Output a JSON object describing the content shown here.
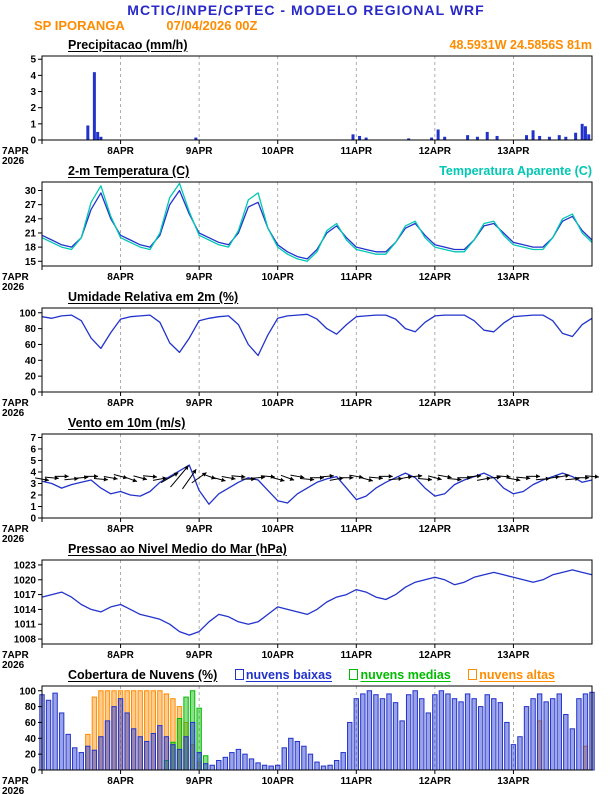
{
  "header": {
    "title": "MCTIC/INPE/CPTEC - MODELO REGIONAL WRF",
    "station": "SP IPORANGA",
    "run": "07/04/2026 00Z",
    "location": "48.5931W 24.5856S 81m"
  },
  "colors": {
    "title_blue": "#2929c8",
    "orange": "#ff8c00",
    "line_blue": "#2233cc",
    "cyan": "#00c8b4",
    "green": "#00bb00"
  },
  "time_axis": {
    "hours_total": 168,
    "ticks": [
      {
        "h": 0,
        "label": "7APR",
        "sub": "2026"
      },
      {
        "h": 24,
        "label": "8APR"
      },
      {
        "h": 48,
        "label": "9APR"
      },
      {
        "h": 72,
        "label": "10APR"
      },
      {
        "h": 96,
        "label": "11APR"
      },
      {
        "h": 120,
        "label": "12APR"
      },
      {
        "h": 144,
        "label": "13APR"
      }
    ]
  },
  "chart_data": [
    {
      "id": "precip",
      "type": "bar",
      "render": "sparse-bars",
      "title": "Precipitacao (mm/h)",
      "ylim": [
        0,
        5.2
      ],
      "yticks": [
        0,
        1,
        2,
        3,
        4,
        5
      ],
      "color": "#2233cc",
      "bars": [
        {
          "h": 14,
          "v": 0.9
        },
        {
          "h": 16,
          "v": 4.2
        },
        {
          "h": 17,
          "v": 0.5
        },
        {
          "h": 18,
          "v": 0.2
        },
        {
          "h": 47,
          "v": 0.15
        },
        {
          "h": 95,
          "v": 0.35
        },
        {
          "h": 97,
          "v": 0.25
        },
        {
          "h": 99,
          "v": 0.15
        },
        {
          "h": 112,
          "v": 0.1
        },
        {
          "h": 119,
          "v": 0.15
        },
        {
          "h": 121,
          "v": 0.65
        },
        {
          "h": 123,
          "v": 0.2
        },
        {
          "h": 130,
          "v": 0.3
        },
        {
          "h": 133,
          "v": 0.2
        },
        {
          "h": 136,
          "v": 0.5
        },
        {
          "h": 139,
          "v": 0.25
        },
        {
          "h": 148,
          "v": 0.3
        },
        {
          "h": 150,
          "v": 0.6
        },
        {
          "h": 152,
          "v": 0.25
        },
        {
          "h": 155,
          "v": 0.2
        },
        {
          "h": 158,
          "v": 0.3
        },
        {
          "h": 160,
          "v": 0.2
        },
        {
          "h": 163,
          "v": 0.45
        },
        {
          "h": 165,
          "v": 1.0
        },
        {
          "h": 166,
          "v": 0.85
        },
        {
          "h": 167,
          "v": 0.35
        }
      ]
    },
    {
      "id": "temp",
      "type": "line",
      "render": "lines",
      "title": "2-m Temperatura (C)",
      "right_label": "Temperatura Aparente (C)",
      "step_hours": 3,
      "ylim": [
        14,
        31.8
      ],
      "yticks": [
        15,
        18,
        21,
        24,
        27,
        30
      ],
      "series": [
        {
          "name": "2-m Temperatura (C)",
          "color": "#2233cc",
          "values": [
            20.5,
            19.5,
            18.5,
            18,
            20,
            26,
            29.5,
            24,
            20.5,
            19.5,
            18.5,
            18,
            20.5,
            27,
            30,
            25,
            21,
            20,
            19,
            18.5,
            21,
            26.5,
            27.5,
            22,
            18.5,
            17,
            16,
            15.5,
            17.5,
            21,
            22.5,
            20,
            18,
            17.5,
            17,
            17,
            19,
            22,
            23,
            20.5,
            18.5,
            18,
            17.5,
            17.5,
            19.5,
            22.5,
            23,
            21,
            19,
            18.5,
            18,
            18,
            20,
            23.5,
            24.5,
            21.5,
            19.5
          ]
        },
        {
          "name": "Temperatura Aparente (C)",
          "color": "#00c8b4",
          "values": [
            20,
            19,
            18,
            17.5,
            20,
            27.5,
            31,
            24.5,
            20,
            19,
            18,
            17.5,
            21,
            28.5,
            31.5,
            25.5,
            20.5,
            19.5,
            18.5,
            18,
            21.5,
            28,
            29.5,
            22,
            18,
            16.5,
            15.5,
            15,
            17,
            21.5,
            23,
            19.5,
            17.5,
            17,
            16.5,
            16.5,
            19,
            22.5,
            23.5,
            20,
            18,
            17.5,
            17,
            17,
            19.5,
            23,
            23.5,
            20.5,
            18.5,
            18,
            17.5,
            17.5,
            20,
            24,
            25,
            21,
            19
          ]
        }
      ]
    },
    {
      "id": "rh",
      "type": "line",
      "render": "lines",
      "title": "Umidade Relativa em 2m (%)",
      "step_hours": 3,
      "ylim": [
        0,
        106
      ],
      "yticks": [
        0,
        20,
        40,
        60,
        80,
        100
      ],
      "series": [
        {
          "name": "Umidade Relativa 2m",
          "color": "#2233cc",
          "values": [
            95,
            93,
            96,
            97,
            90,
            68,
            55,
            75,
            92,
            95,
            96,
            97,
            88,
            62,
            50,
            68,
            90,
            93,
            95,
            96,
            85,
            60,
            46,
            72,
            93,
            96,
            97,
            98,
            92,
            80,
            73,
            85,
            95,
            96,
            97,
            97,
            92,
            80,
            76,
            88,
            96,
            97,
            97,
            97,
            90,
            78,
            76,
            87,
            95,
            96,
            97,
            97,
            90,
            74,
            70,
            85,
            93
          ]
        }
      ]
    },
    {
      "id": "wind",
      "type": "line",
      "render": "lines",
      "title": "Vento em 10m (m/s)",
      "step_hours": 3,
      "ylim": [
        0,
        7.3
      ],
      "yticks": [
        0,
        1,
        2,
        3,
        4,
        5,
        6,
        7
      ],
      "series": [
        {
          "name": "Vento 10m",
          "color": "#2233cc",
          "values": [
            3.2,
            3.0,
            2.6,
            2.9,
            3.1,
            3.3,
            2.6,
            2.1,
            2.3,
            2.0,
            1.9,
            2.3,
            3.1,
            3.6,
            4.1,
            4.6,
            2.4,
            1.2,
            2.1,
            2.6,
            3.1,
            3.5,
            3.3,
            2.4,
            1.5,
            1.3,
            2.1,
            2.6,
            3.1,
            3.4,
            3.6,
            2.6,
            1.6,
            1.9,
            2.6,
            3.1,
            3.5,
            3.9,
            3.5,
            2.6,
            1.9,
            2.1,
            2.9,
            3.3,
            3.6,
            3.9,
            3.5,
            2.6,
            2.1,
            2.3,
            2.9,
            3.3,
            3.6,
            3.9,
            3.6,
            3.1,
            3.3
          ]
        }
      ],
      "barbs": {
        "y": 3.5,
        "len": 14,
        "dirs": [
          100,
          95,
          90,
          85,
          85,
          90,
          95,
          100,
          105,
          110,
          105,
          95,
          80,
          60,
          40,
          35,
          55,
          110,
          105,
          100,
          95,
          90,
          85,
          95,
          105,
          110,
          100,
          95,
          90,
          85,
          80,
          90,
          100,
          105,
          95,
          90,
          85,
          80,
          85,
          95,
          105,
          100,
          95,
          90,
          85,
          80,
          85,
          95,
          100,
          95,
          90,
          85,
          80,
          80,
          85,
          90,
          95
        ],
        "big": {
          "13": 20,
          "14": 28,
          "15": 24,
          "16": 18
        }
      }
    },
    {
      "id": "pressure",
      "type": "line",
      "render": "lines",
      "title": "Pressao ao Nivel Medio do Mar (hPa)",
      "step_hours": 3,
      "ylim": [
        1007,
        1024
      ],
      "yticks": [
        1008,
        1011,
        1014,
        1017,
        1020,
        1023
      ],
      "series": [
        {
          "name": "Pressao nivel do mar",
          "color": "#2233cc",
          "values": [
            1016.5,
            1017,
            1017.5,
            1016.5,
            1015,
            1014,
            1013.5,
            1014.5,
            1015,
            1014,
            1013,
            1012.5,
            1012,
            1011,
            1009.5,
            1008.8,
            1009.5,
            1011.5,
            1013,
            1012.5,
            1011.5,
            1011,
            1011.5,
            1013,
            1014.5,
            1014,
            1013.5,
            1013,
            1014,
            1015.5,
            1016.5,
            1017,
            1018,
            1017.5,
            1016.5,
            1016,
            1017,
            1018.5,
            1019.5,
            1020,
            1020.5,
            1020,
            1019,
            1019.5,
            1020.5,
            1021,
            1021.5,
            1021,
            1020.5,
            1020,
            1019.5,
            1020,
            1021,
            1021.5,
            1022,
            1021.5,
            1021
          ]
        }
      ]
    },
    {
      "id": "clouds",
      "type": "bar",
      "render": "cloud-bars",
      "title": "Cobertura de Nuvens (%)",
      "step_hours": 2,
      "ylim": [
        0,
        106
      ],
      "yticks": [
        0,
        20,
        40,
        60,
        80,
        100
      ],
      "series": [
        {
          "name": "nuvens baixas",
          "color": "#2233cc",
          "values": [
            95,
            88,
            97,
            72,
            45,
            28,
            22,
            30,
            25,
            42,
            62,
            80,
            90,
            72,
            52,
            42,
            36,
            46,
            56,
            42,
            32,
            26,
            42,
            60,
            22,
            8,
            6,
            12,
            16,
            22,
            26,
            20,
            14,
            9,
            6,
            5,
            6,
            28,
            40,
            36,
            30,
            20,
            10,
            5,
            6,
            12,
            22,
            60,
            90,
            96,
            100,
            95,
            90,
            96,
            85,
            62,
            95,
            100,
            90,
            72,
            95,
            100,
            96,
            90,
            86,
            96,
            90,
            80,
            95,
            90,
            85,
            60,
            32,
            42,
            80,
            90,
            96,
            86,
            90,
            96,
            70,
            52,
            90,
            96,
            98
          ]
        },
        {
          "name": "nuvens medias",
          "color": "#00bb00",
          "values": [
            0,
            0,
            0,
            0,
            0,
            0,
            0,
            0,
            0,
            0,
            0,
            0,
            0,
            0,
            0,
            0,
            0,
            0,
            0,
            12,
            35,
            65,
            92,
            100,
            78,
            18,
            0,
            0,
            0,
            0,
            0,
            0,
            0,
            0,
            0,
            0,
            0,
            0,
            0,
            0,
            0,
            0,
            0,
            0,
            0,
            0,
            0,
            0,
            0,
            0,
            0,
            0,
            0,
            0,
            0,
            0,
            0,
            0,
            0,
            0,
            0,
            0,
            0,
            0,
            0,
            0,
            0,
            0,
            0,
            0,
            0,
            0,
            0,
            0,
            0,
            0,
            0,
            0,
            0,
            0,
            0,
            0,
            0,
            0,
            0
          ]
        },
        {
          "name": "nuvens altas",
          "color": "#ff8c00",
          "values": [
            0,
            0,
            0,
            0,
            0,
            0,
            0,
            45,
            92,
            100,
            100,
            100,
            100,
            100,
            100,
            100,
            100,
            100,
            100,
            96,
            90,
            80,
            60,
            32,
            10,
            0,
            0,
            0,
            0,
            0,
            0,
            0,
            0,
            0,
            0,
            0,
            0,
            0,
            0,
            0,
            0,
            0,
            0,
            0,
            0,
            0,
            0,
            0,
            0,
            0,
            0,
            0,
            0,
            0,
            0,
            0,
            0,
            0,
            0,
            0,
            0,
            0,
            0,
            0,
            0,
            0,
            0,
            0,
            0,
            0,
            0,
            0,
            0,
            0,
            0,
            0,
            62,
            0,
            0,
            0,
            0,
            0,
            0,
            30,
            0
          ]
        }
      ],
      "legend": [
        {
          "label": "nuvens baixas",
          "color": "#2233cc"
        },
        {
          "label": "nuvens medias",
          "color": "#00bb00"
        },
        {
          "label": "nuvens altas",
          "color": "#ff8c00"
        }
      ]
    }
  ]
}
